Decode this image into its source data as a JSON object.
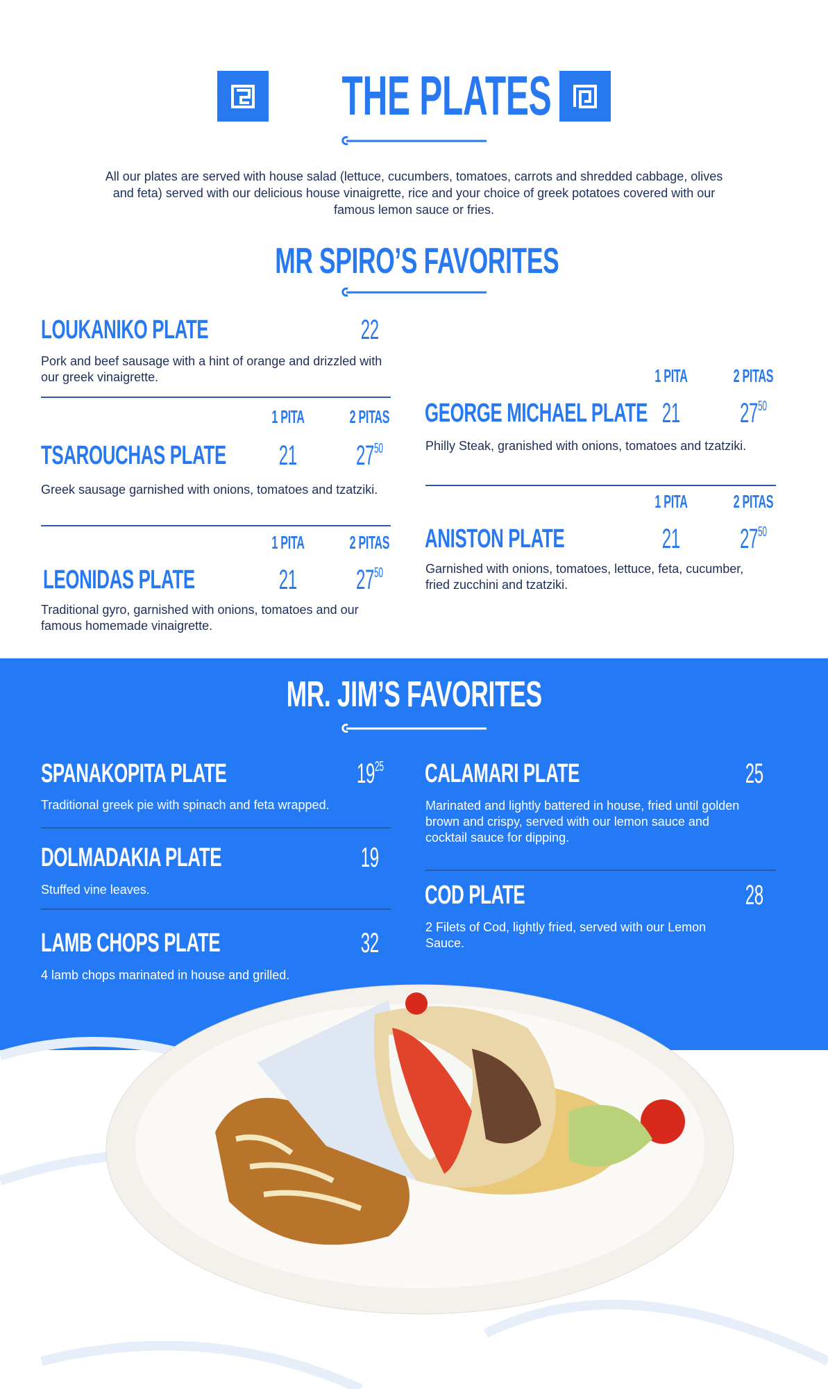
{
  "header": {
    "title": "THE PLATES",
    "intro": "All our plates are served with house salad (lettuce, cucumbers, tomatoes, carrots and shredded cabbage, olives and feta) served with our delicious house vinaigrette, rice and your choice of greek potatoes covered with our famous lemon sauce or fries."
  },
  "colors": {
    "brand_blue": "#2479f4",
    "text_navy": "#1d2e5a"
  },
  "spiro": {
    "title": "MR SPIRO’S FAVORITES",
    "one_pita": "1 PITA",
    "two_pitas": "2 PITAS",
    "items": [
      {
        "name": "LOUKANIKO PLATE",
        "price": "22",
        "desc": "Pork and beef sausage with a hint of orange and drizzled with our greek vinaigrette."
      },
      {
        "name": "TSAROUCHAS PLATE",
        "price_1": "21",
        "price_2": "27",
        "price_2_cents": "50",
        "desc": "Greek sausage garnished with onions, tomatoes and tzatziki."
      },
      {
        "name": "LEONIDAS PLATE",
        "price_1": "21",
        "price_2": "27",
        "price_2_cents": "50",
        "desc": "Traditional gyro, garnished with onions, tomatoes and our famous homemade vinaigrette."
      },
      {
        "name": "GEORGE MICHAEL PLATE",
        "price_1": "21",
        "price_2": "27",
        "price_2_cents": "50",
        "desc": "Philly Steak, granished with onions, tomatoes and tzatziki."
      },
      {
        "name": "ANISTON PLATE",
        "price_1": "21",
        "price_2": "27",
        "price_2_cents": "50",
        "desc": "Garnished with onions, tomatoes, lettuce, feta, cucumber, fried zucchini and tzatziki."
      }
    ]
  },
  "jim": {
    "title": "MR. JIM’S FAVORITES",
    "items": [
      {
        "name": "SPANAKOPITA PLATE",
        "price": "19",
        "price_cents": "25",
        "desc": "Traditional greek pie with spinach and feta wrapped."
      },
      {
        "name": "DOLMADAKIA PLATE",
        "price": "19",
        "desc": "Stuffed vine leaves."
      },
      {
        "name": "LAMB CHOPS PLATE",
        "price": "32",
        "desc": "4 lamb chops marinated in house and grilled."
      },
      {
        "name": "CALAMARI PLATE",
        "price": "25",
        "desc": "Marinated and lightly battered in house, fried until golden brown and crispy, served with our lemon sauce and cocktail sauce for dipping."
      },
      {
        "name": "COD PLATE",
        "price": "28",
        "desc": "2 Filets of Cod, lightly fried, served with our Lemon Sauce."
      }
    ]
  }
}
